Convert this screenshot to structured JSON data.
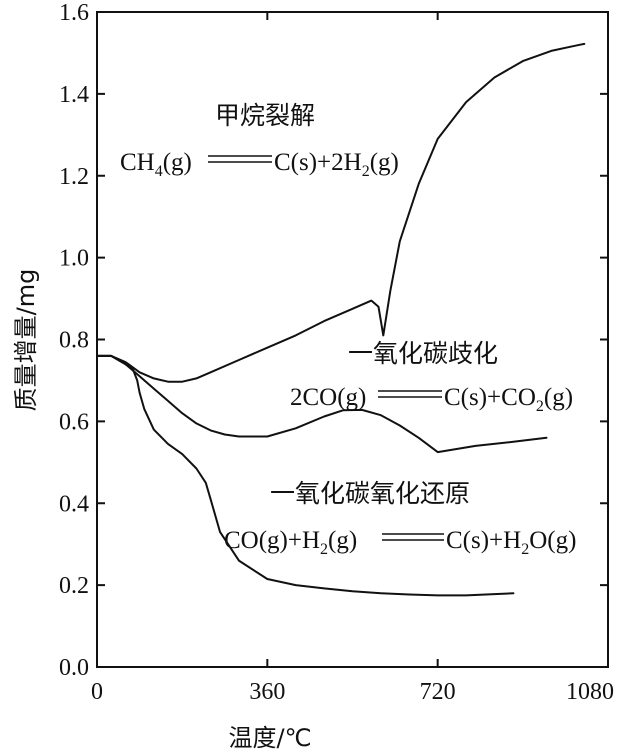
{
  "chart_data": {
    "type": "line",
    "title": "",
    "xlabel": "温度/℃",
    "ylabel": "质量增量/mg",
    "xlim": [
      0,
      1080
    ],
    "ylim": [
      0.0,
      1.6
    ],
    "xticks": [
      0,
      360,
      720,
      1080
    ],
    "xtick_labels": [
      "0",
      "360",
      "720",
      "1080"
    ],
    "yticks": [
      0.0,
      0.2,
      0.4,
      0.6,
      0.8,
      1.0,
      1.2,
      1.4,
      1.6
    ],
    "ytick_labels": [
      "0.0",
      "0.2",
      "0.4",
      "0.6",
      "0.8",
      "1.0",
      "1.2",
      "1.4",
      "1.6"
    ],
    "grid": false,
    "series": [
      {
        "name": "甲烷裂解",
        "x": [
          0,
          30,
          60,
          90,
          120,
          150,
          180,
          210,
          240,
          300,
          360,
          420,
          480,
          540,
          580,
          595,
          605,
          620,
          640,
          680,
          720,
          780,
          840,
          900,
          960,
          1000,
          1020,
          1030
        ],
        "y": [
          0.76,
          0.76,
          0.745,
          0.72,
          0.705,
          0.697,
          0.697,
          0.705,
          0.72,
          0.75,
          0.78,
          0.81,
          0.845,
          0.875,
          0.895,
          0.88,
          0.81,
          0.92,
          1.04,
          1.18,
          1.29,
          1.38,
          1.44,
          1.48,
          1.505,
          1.515,
          1.52,
          1.522
        ]
      },
      {
        "name": "一氧化碳歧化",
        "x": [
          0,
          30,
          60,
          90,
          120,
          150,
          180,
          210,
          240,
          270,
          300,
          360,
          420,
          480,
          520,
          560,
          600,
          640,
          680,
          720,
          800,
          880,
          950
        ],
        "y": [
          0.76,
          0.76,
          0.74,
          0.71,
          0.68,
          0.65,
          0.62,
          0.595,
          0.578,
          0.568,
          0.563,
          0.563,
          0.583,
          0.612,
          0.627,
          0.628,
          0.615,
          0.59,
          0.56,
          0.525,
          0.54,
          0.55,
          0.56
        ]
      },
      {
        "name": "一氧化碳氧化还原",
        "x": [
          0,
          30,
          60,
          75,
          85,
          90,
          100,
          120,
          150,
          180,
          210,
          230,
          240,
          260,
          300,
          360,
          420,
          480,
          540,
          600,
          660,
          720,
          780,
          840,
          880
        ],
        "y": [
          0.76,
          0.76,
          0.74,
          0.73,
          0.7,
          0.67,
          0.63,
          0.58,
          0.545,
          0.52,
          0.485,
          0.45,
          0.41,
          0.33,
          0.26,
          0.215,
          0.2,
          0.192,
          0.185,
          0.18,
          0.177,
          0.175,
          0.175,
          0.178,
          0.18
        ]
      }
    ],
    "annotations": {
      "methane_name": "甲烷裂解",
      "methane_lhs": "CH",
      "methane_lhs_sub": "4",
      "methane_lhs_tail": "(g)",
      "methane_rhs": "C(s)+2H",
      "methane_rhs_sub": "2",
      "methane_rhs_tail": "(g)",
      "co_disp_name": "一氧化碳歧化",
      "co_disp_lhs": "2CO(g)",
      "co_disp_rhs": "C(s)+CO",
      "co_disp_rhs_sub": "2",
      "co_disp_rhs_tail": "(g)",
      "co_redox_name": "一氧化碳氧化还原",
      "co_redox_lhs": "CO(g)+H",
      "co_redox_lhs_sub": "2",
      "co_redox_lhs_tail": "(g)",
      "co_redox_rhs": "C(s)+H",
      "co_redox_rhs_sub": "2",
      "co_redox_rhs_tail": "O(g)"
    }
  }
}
